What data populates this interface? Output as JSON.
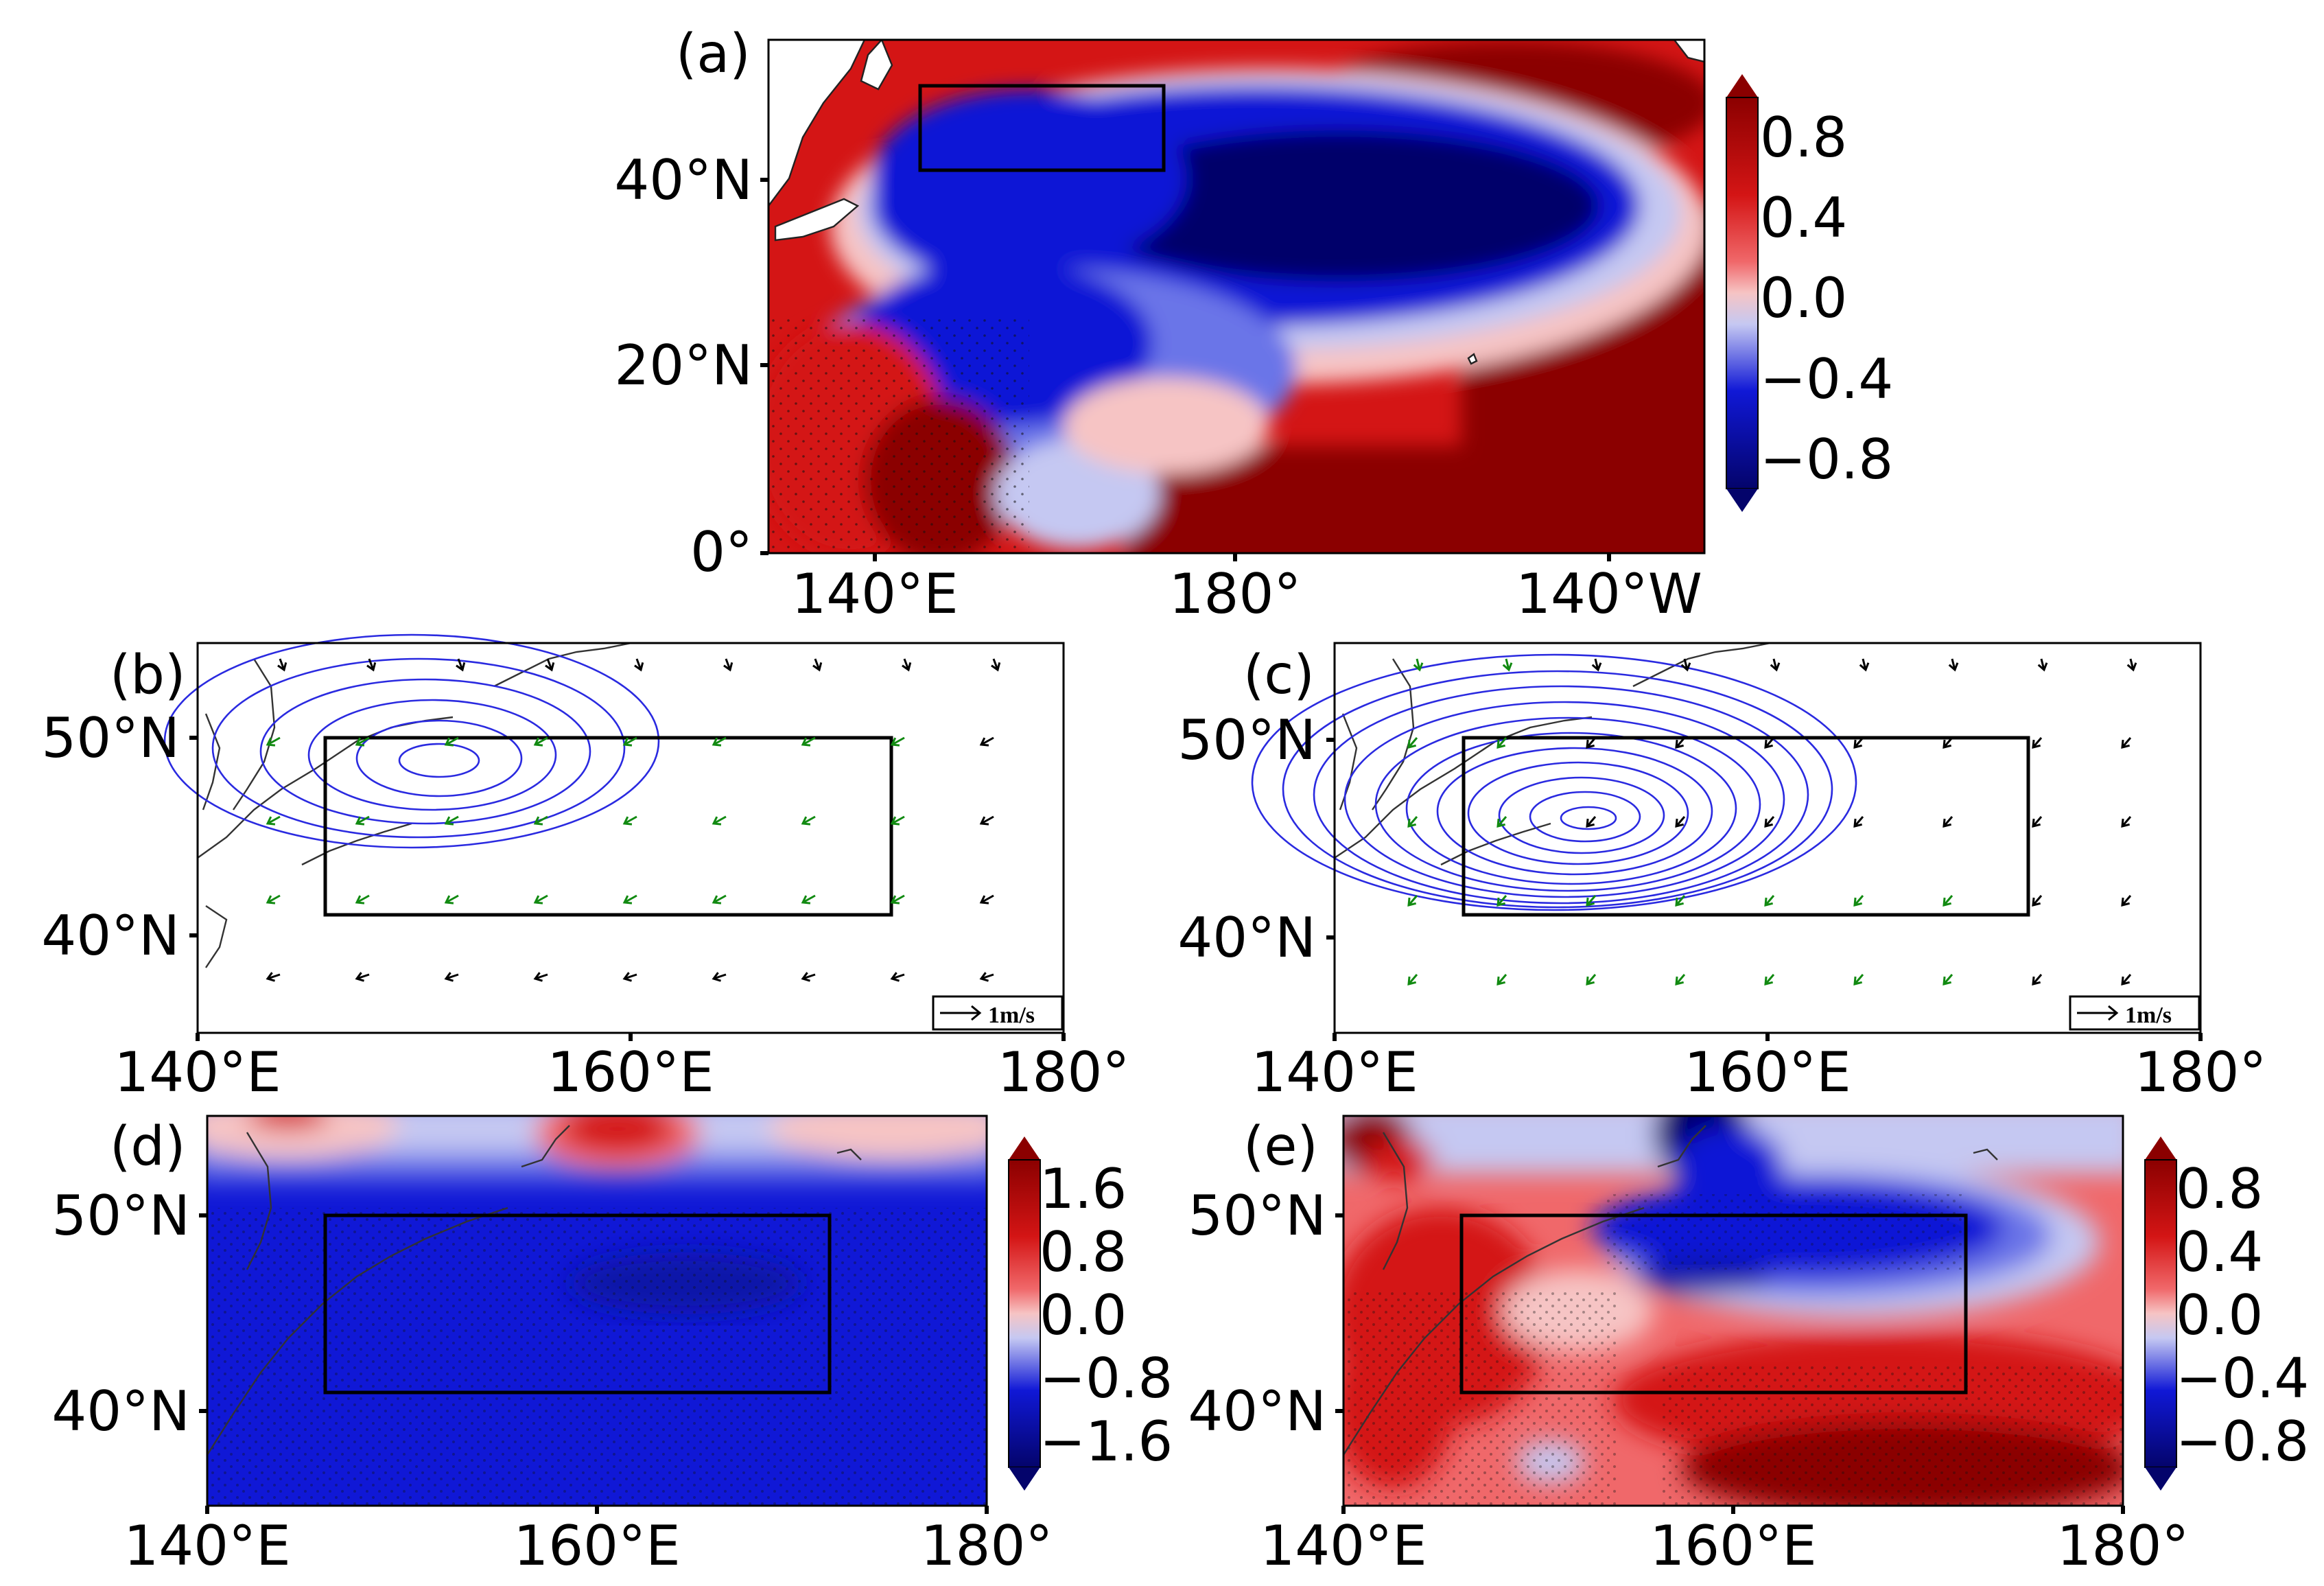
{
  "colors": {
    "deep_red": "#8b0000",
    "red": "#d41515",
    "light_red": "#f0686a",
    "pale_red": "#f6c4c4",
    "pale_blue": "#c5c8f2",
    "light_blue": "#6b74e8",
    "blue": "#1018d6",
    "deep_blue": "#04046b",
    "contour": "#2a2ae0",
    "vector_green": "#118a11",
    "vector_black": "#000000"
  },
  "panels": {
    "a": {
      "label": "(a)",
      "y_ticks": [
        "40°N",
        "20°N",
        "0°"
      ],
      "x_ticks": [
        "140°E",
        "180°",
        "140°W"
      ],
      "colorbar": [
        "0.8",
        "0.4",
        "0.0",
        "−0.4",
        "−0.8"
      ]
    },
    "b": {
      "label": "(b)",
      "y_ticks": [
        "50°N",
        "40°N"
      ],
      "x_ticks": [
        "140°E",
        "160°E",
        "180°"
      ],
      "ref_vector": "1m/s"
    },
    "c": {
      "label": "(c)",
      "y_ticks": [
        "50°N",
        "40°N"
      ],
      "x_ticks": [
        "140°E",
        "160°E",
        "180°"
      ],
      "ref_vector": "1m/s"
    },
    "d": {
      "label": "(d)",
      "y_ticks": [
        "50°N",
        "40°N"
      ],
      "x_ticks": [
        "140°E",
        "160°E",
        "180°"
      ],
      "colorbar": [
        "1.6",
        "0.8",
        "0.0",
        "−0.8",
        "−1.6"
      ]
    },
    "e": {
      "label": "(e)",
      "y_ticks": [
        "50°N",
        "40°N"
      ],
      "x_ticks": [
        "140°E",
        "160°E",
        "180°"
      ],
      "colorbar": [
        "0.8",
        "0.4",
        "0.0",
        "−0.4",
        "−0.8"
      ]
    }
  }
}
